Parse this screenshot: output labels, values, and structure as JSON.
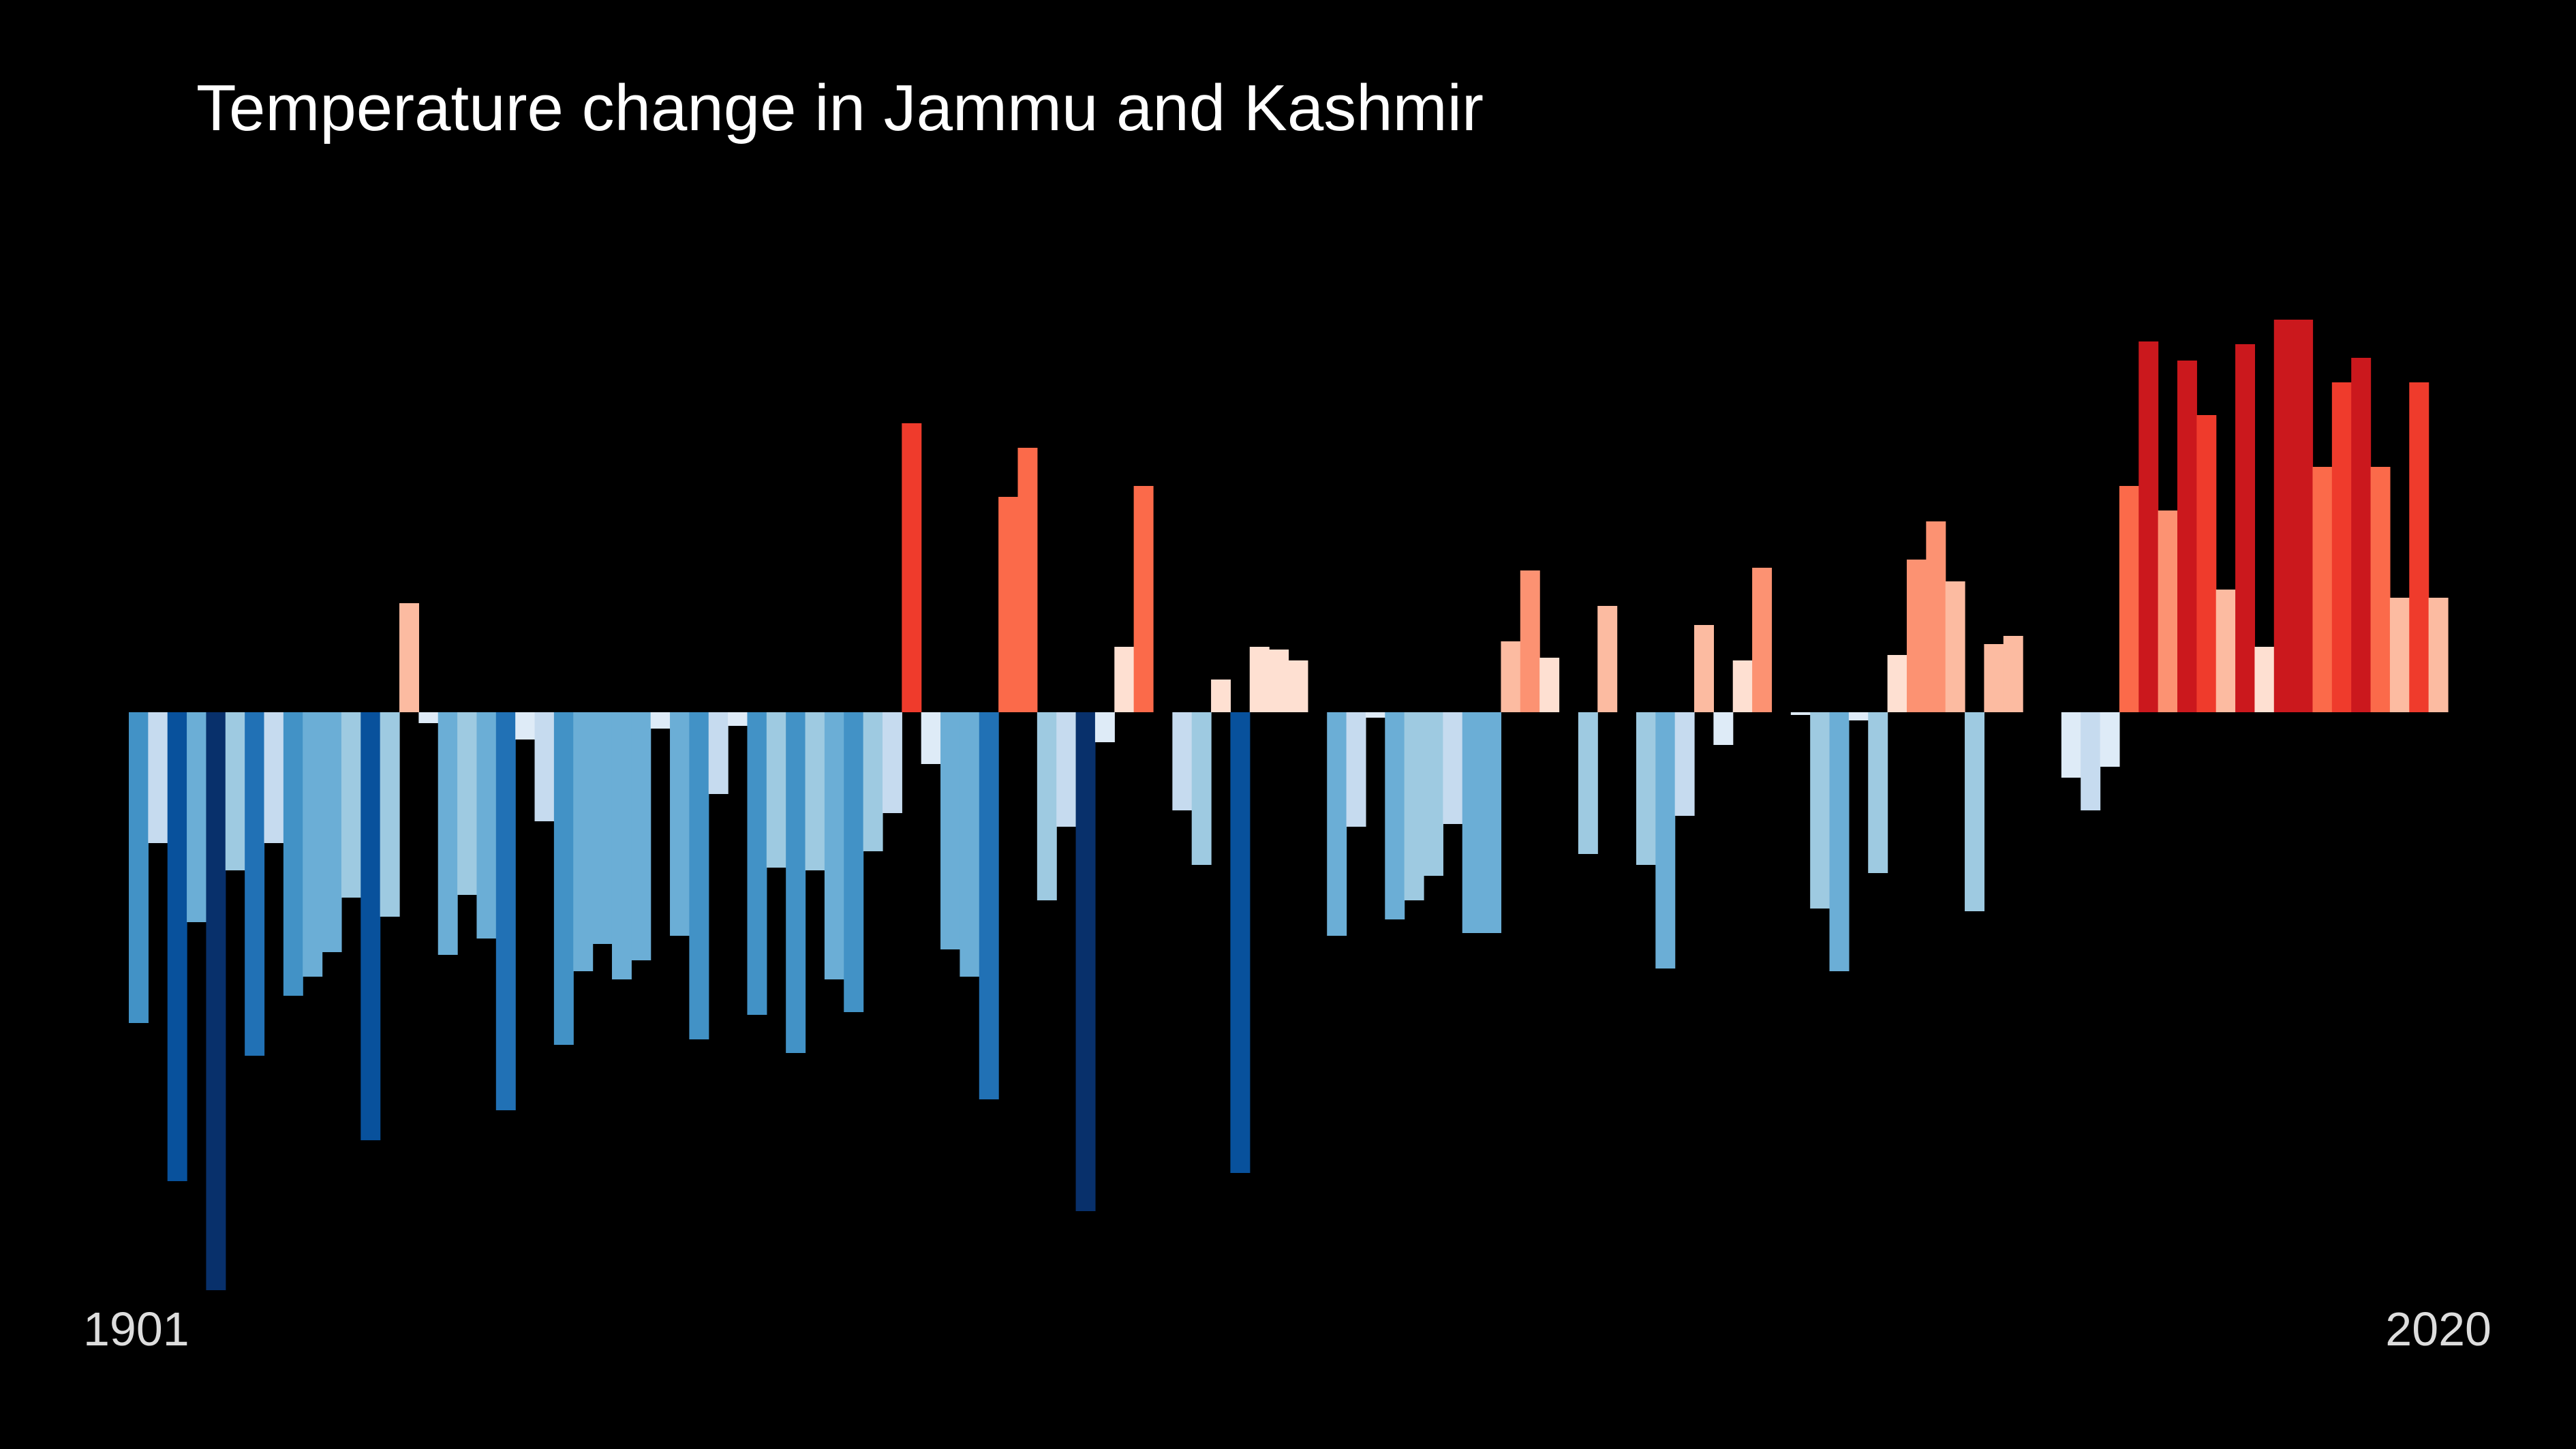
{
  "chart_data": {
    "type": "bar",
    "title": "Temperature change in Jammu and Kashmir",
    "xlabel": "",
    "ylabel": "",
    "x_start_label": "1901",
    "x_end_label": "2020",
    "grid": false,
    "legend": "none",
    "ylim": [
      -2.12,
      2.0
    ],
    "categories": [
      1901,
      1902,
      1903,
      1904,
      1905,
      1906,
      1907,
      1908,
      1909,
      1910,
      1911,
      1912,
      1913,
      1914,
      1915,
      1916,
      1917,
      1918,
      1919,
      1920,
      1921,
      1922,
      1923,
      1924,
      1925,
      1926,
      1927,
      1928,
      1929,
      1930,
      1931,
      1932,
      1933,
      1934,
      1935,
      1936,
      1937,
      1938,
      1939,
      1940,
      1941,
      1942,
      1943,
      1944,
      1945,
      1946,
      1947,
      1948,
      1949,
      1950,
      1951,
      1952,
      1953,
      1954,
      1955,
      1956,
      1957,
      1958,
      1959,
      1960,
      1961,
      1962,
      1963,
      1964,
      1965,
      1966,
      1967,
      1968,
      1969,
      1970,
      1971,
      1972,
      1973,
      1974,
      1975,
      1976,
      1977,
      1978,
      1979,
      1980,
      1981,
      1982,
      1983,
      1984,
      1985,
      1986,
      1987,
      1988,
      1989,
      1990,
      1991,
      1992,
      1993,
      1994,
      1995,
      1996,
      1997,
      1998,
      1999,
      2000,
      2001,
      2002,
      2003,
      2004,
      2005,
      2006,
      2007,
      2008,
      2009,
      2010,
      2011,
      2012,
      2013,
      2014,
      2015,
      2016,
      2017,
      2018,
      2019,
      2020
    ],
    "values": [
      -1.14,
      -0.48,
      -1.72,
      -0.77,
      -2.12,
      -0.58,
      -1.26,
      -0.48,
      -1.04,
      -0.97,
      -0.88,
      -0.68,
      -1.57,
      -0.75,
      0.4,
      -0.04,
      -0.89,
      -0.67,
      -0.83,
      -1.46,
      -0.1,
      -0.4,
      -1.22,
      -0.95,
      -0.85,
      -0.98,
      -0.91,
      -0.06,
      -0.82,
      -1.2,
      -0.3,
      -0.05,
      -1.11,
      -0.57,
      -1.25,
      -0.58,
      -0.98,
      -1.1,
      -0.51,
      -0.37,
      1.06,
      -0.19,
      -0.87,
      -0.97,
      -1.42,
      0.79,
      0.97,
      -0.69,
      -0.42,
      -1.83,
      -0.11,
      0.24,
      0.83,
      0.0,
      -0.36,
      -0.56,
      0.12,
      -1.69,
      0.24,
      0.23,
      0.19,
      0.0,
      -0.82,
      -0.42,
      -0.02,
      -0.76,
      -0.69,
      -0.6,
      -0.41,
      -0.81,
      -0.81,
      0.26,
      0.52,
      0.2,
      0.0,
      -0.52,
      0.39,
      0.0,
      -0.56,
      -0.94,
      -0.38,
      0.32,
      -0.12,
      0.19,
      0.53,
      0.0,
      -0.01,
      -0.72,
      -0.95,
      -0.03,
      -0.59,
      0.21,
      0.56,
      0.7,
      0.48,
      -0.73,
      0.25,
      0.28,
      0.0,
      0.0,
      -0.24,
      -0.36,
      -0.2,
      0.83,
      1.36,
      0.74,
      1.29,
      1.09,
      0.45,
      1.35,
      0.24,
      1.44,
      1.44,
      0.9,
      1.21,
      1.3,
      0.9,
      0.42,
      1.21,
      0.42
    ]
  },
  "colors": {
    "background": "#000000",
    "title_text": "#ffffff",
    "year_text": "#dddddd",
    "palette": [
      "#08306b",
      "#08519c",
      "#2171b5",
      "#4292c6",
      "#6baed6",
      "#9ecae1",
      "#c6dbef",
      "#deebf7",
      "#fee0d2",
      "#fcbba1",
      "#fc9272",
      "#fb6a4a",
      "#ef3b2c",
      "#cb181d",
      "#a50f15",
      "#67000d"
    ],
    "palette_range": [
      -2.0,
      2.0
    ]
  }
}
